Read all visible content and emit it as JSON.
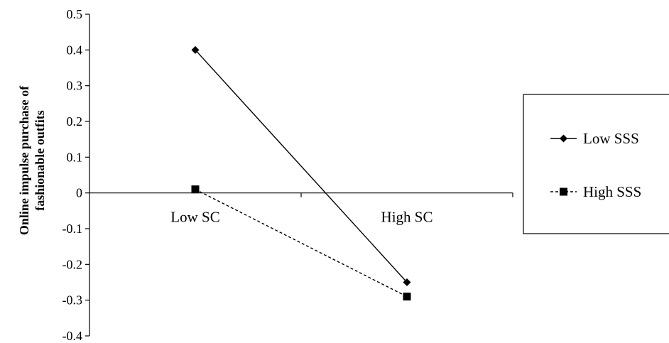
{
  "chart_data": {
    "type": "line",
    "categories": [
      "Low SC",
      "High SC"
    ],
    "series": [
      {
        "name": "Low SSS",
        "values": [
          0.4,
          -0.25
        ],
        "style": "solid",
        "marker": "diamond"
      },
      {
        "name": "High SSS",
        "values": [
          0.01,
          -0.29
        ],
        "style": "dashed",
        "marker": "square"
      }
    ],
    "ylabel_lines": [
      "Online impulse purchase of",
      "fashionable outfits"
    ],
    "xlabel": "",
    "ylim": [
      -0.4,
      0.5
    ],
    "yticks": [
      "0.5",
      "0.4",
      "0.3",
      "0.2",
      "0.1",
      "0",
      "-0.1",
      "-0.2",
      "-0.3",
      "-0.4"
    ],
    "grid": false,
    "legend_position": "right"
  }
}
